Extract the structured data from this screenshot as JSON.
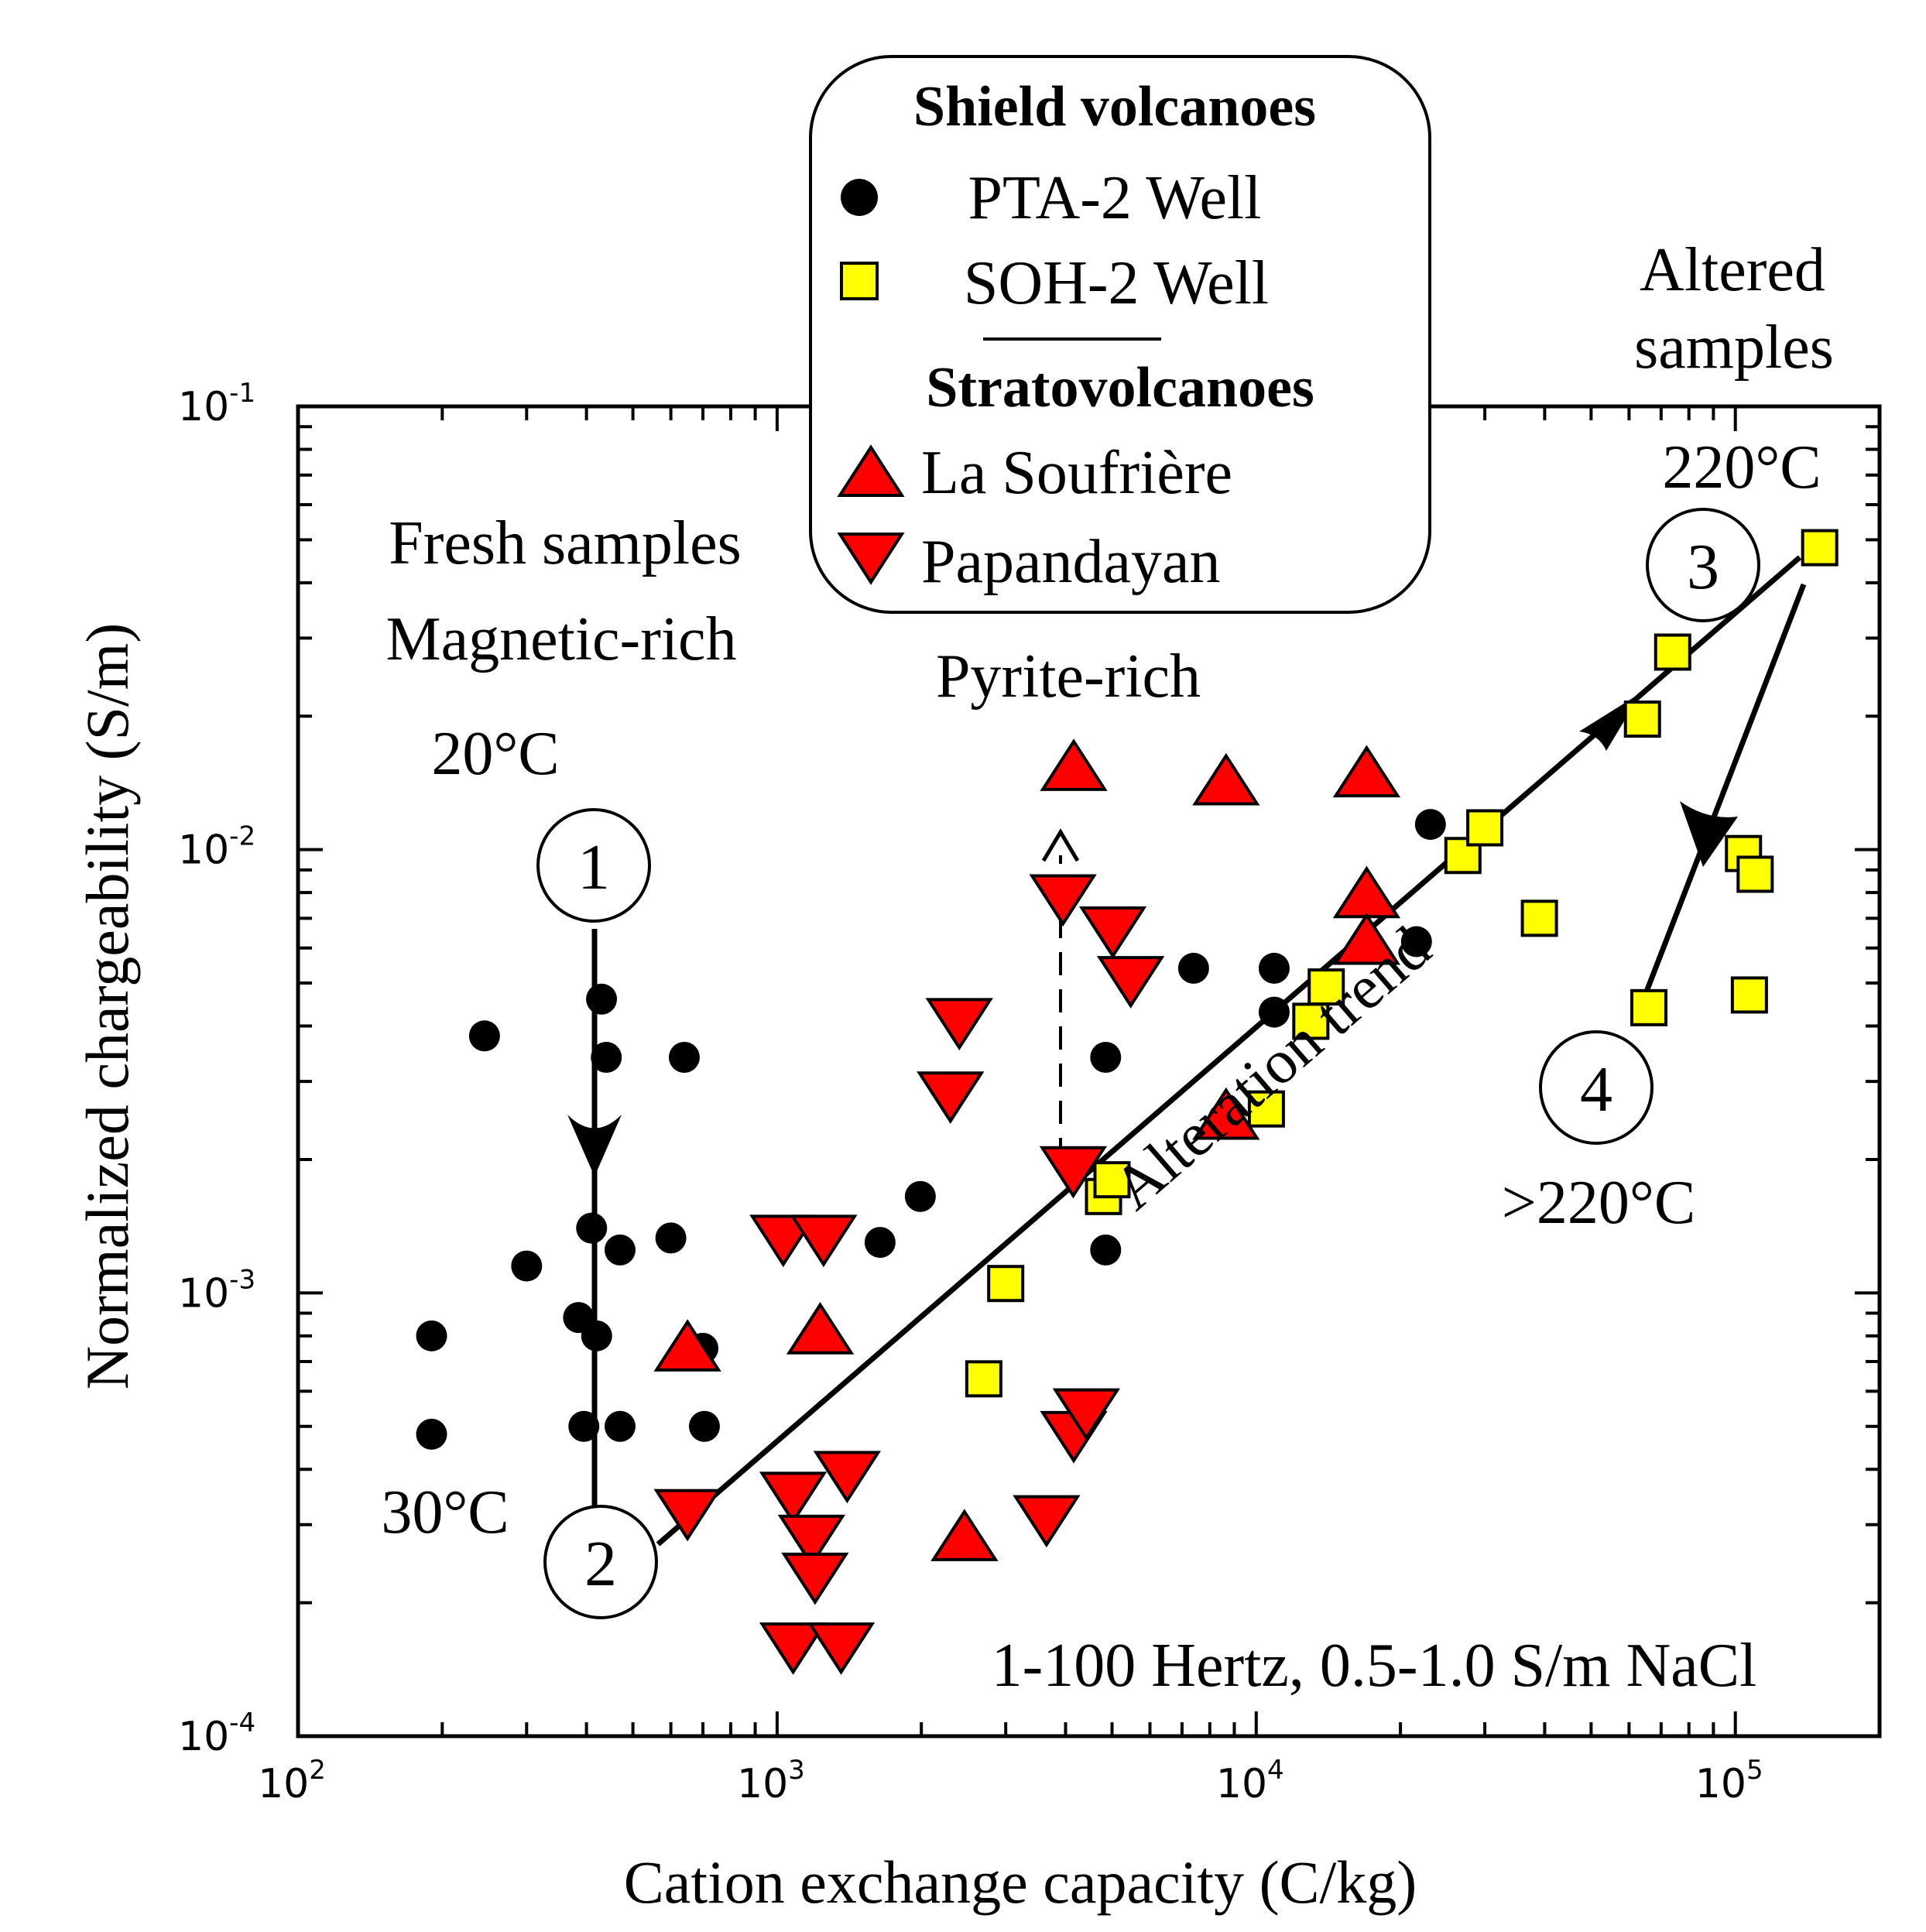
{
  "chart_data": {
    "type": "scatter",
    "xscale": "log",
    "yscale": "log",
    "xlim": [
      100,
      200000
    ],
    "ylim": [
      0.0001,
      0.1
    ],
    "xlabel": "Cation exchange capacity (C/kg)",
    "ylabel": "Normalized chargeability (S/m)",
    "x_ticks": [
      {
        "value": 100,
        "base": "10",
        "exp": "2"
      },
      {
        "value": 1000,
        "base": "10",
        "exp": "3"
      },
      {
        "value": 10000,
        "base": "10",
        "exp": "4"
      },
      {
        "value": 100000,
        "base": "10",
        "exp": "5"
      }
    ],
    "y_ticks": [
      {
        "value": 0.0001,
        "base": "10",
        "exp": "-4"
      },
      {
        "value": 0.001,
        "base": "10",
        "exp": "-3"
      },
      {
        "value": 0.01,
        "base": "10",
        "exp": "-2"
      },
      {
        "value": 0.1,
        "base": "10",
        "exp": "-1"
      }
    ],
    "legend": {
      "position": "top-center",
      "group_1_title": "Shield volcanoes",
      "group_2_title": "Stratovolcanoes",
      "entries": [
        {
          "label": "PTA-2 Well",
          "marker": "circle",
          "color": "#000000"
        },
        {
          "label": "SOH-2 Well",
          "marker": "square",
          "color": "#ffff00"
        },
        {
          "label": "La Soufrière",
          "marker": "triangle-up",
          "color": "#ff0000"
        },
        {
          "label": "Papandayan",
          "marker": "triangle-down",
          "color": "#ff0000"
        }
      ]
    },
    "series": [
      {
        "name": "PTA-2 Well",
        "marker": "circle",
        "color": "#000000",
        "points": [
          [
            190,
            0.0008
          ],
          [
            190,
            0.00048
          ],
          [
            245,
            0.0038
          ],
          [
            300,
            0.00115
          ],
          [
            385,
            0.00088
          ],
          [
            395,
            0.0005
          ],
          [
            410,
            0.0014
          ],
          [
            420,
            0.0008
          ],
          [
            430,
            0.0046
          ],
          [
            440,
            0.0034
          ],
          [
            470,
            0.00125
          ],
          [
            470,
            0.0005
          ],
          [
            600,
            0.00133
          ],
          [
            640,
            0.0034
          ],
          [
            700,
            0.00075
          ],
          [
            705,
            0.0005
          ],
          [
            1640,
            0.0013
          ],
          [
            1990,
            0.00165
          ],
          [
            4850,
            0.0034
          ],
          [
            4850,
            0.00125
          ],
          [
            7400,
            0.0054
          ],
          [
            10900,
            0.0054
          ],
          [
            10900,
            0.0043
          ],
          [
            21600,
            0.0062
          ],
          [
            23100,
            0.0114
          ]
        ]
      },
      {
        "name": "SOH-2 Well",
        "marker": "square",
        "color": "#ffff00",
        "points": [
          [
            2700,
            0.00064
          ],
          [
            3000,
            0.00105
          ],
          [
            4800,
            0.00165
          ],
          [
            5000,
            0.0018
          ],
          [
            10500,
            0.0026
          ],
          [
            13000,
            0.0041
          ],
          [
            14000,
            0.0049
          ],
          [
            27000,
            0.0097
          ],
          [
            30000,
            0.0112
          ],
          [
            39000,
            0.007
          ],
          [
            64000,
            0.0197
          ],
          [
            66000,
            0.0044
          ],
          [
            74000,
            0.0279
          ],
          [
            104000,
            0.0098
          ],
          [
            107000,
            0.0047
          ],
          [
            110000,
            0.0088
          ],
          [
            150000,
            0.048
          ]
        ]
      },
      {
        "name": "La Soufrière",
        "marker": "triangle-up",
        "color": "#ff0000",
        "points": [
          [
            650,
            0.00075
          ],
          [
            1230,
            0.00082
          ],
          [
            2460,
            0.00028
          ],
          [
            4160,
            0.0153
          ],
          [
            8650,
            0.0142
          ],
          [
            8650,
            0.0025
          ],
          [
            17000,
            0.0148
          ],
          [
            17000,
            0.0079
          ],
          [
            17000,
            0.0062
          ]
        ]
      },
      {
        "name": "Papandayan",
        "marker": "triangle-down",
        "color": "#ff0000",
        "points": [
          [
            650,
            0.00032
          ],
          [
            1030,
            0.00133
          ],
          [
            1080,
            0.00035
          ],
          [
            1080,
            0.00016
          ],
          [
            1180,
            0.00028
          ],
          [
            1200,
            0.00023
          ],
          [
            1250,
            0.00133
          ],
          [
            1360,
            0.00016
          ],
          [
            1400,
            0.00039
          ],
          [
            2300,
            0.0028
          ],
          [
            2400,
            0.0041
          ],
          [
            3650,
            0.00031
          ],
          [
            3950,
            0.0078
          ],
          [
            4150,
            0.0019
          ],
          [
            4160,
            0.00048
          ],
          [
            4420,
            0.00054
          ],
          [
            5020,
            0.0066
          ],
          [
            5470,
            0.0051
          ]
        ]
      }
    ],
    "annotations": {
      "fresh_title": "Fresh samples",
      "fresh_sub": "Magnetic-rich",
      "pyrite": "Pyrite-rich",
      "altered_1": "Altered",
      "altered_2": "samples",
      "t20": "20°C",
      "t30": "30°C",
      "t220": "220°C",
      "tgt220": ">220°C",
      "trend": "Alteration trend",
      "conditions": "1-100 Hertz, 0.5-1.0 S/m NaCl",
      "stage_1": "1",
      "stage_2": "2",
      "stage_3": "3",
      "stage_4": "4"
    }
  }
}
